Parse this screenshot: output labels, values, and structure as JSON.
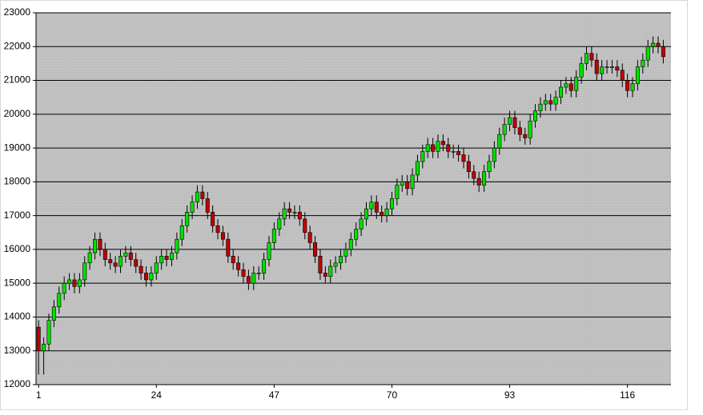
{
  "chart_data": {
    "type": "candlestick",
    "x": [
      1,
      2,
      3,
      4,
      5,
      6,
      7,
      8,
      9,
      10,
      11,
      12,
      13,
      14,
      15,
      16,
      17,
      18,
      19,
      20,
      21,
      22,
      23,
      24,
      25,
      26,
      27,
      28,
      29,
      30,
      31,
      32,
      33,
      34,
      35,
      36,
      37,
      38,
      39,
      40,
      41,
      42,
      43,
      44,
      45,
      46,
      47,
      48,
      49,
      50,
      51,
      52,
      53,
      54,
      55,
      56,
      57,
      58,
      59,
      60,
      61,
      62,
      63,
      64,
      65,
      66,
      67,
      68,
      69,
      70,
      71,
      72,
      73,
      74,
      75,
      76,
      77,
      78,
      79,
      80,
      81,
      82,
      83,
      84,
      85,
      86,
      87,
      88,
      89,
      90,
      91,
      92,
      93,
      94,
      95,
      96,
      97,
      98,
      99,
      100,
      101,
      102,
      103,
      104,
      105,
      106,
      107,
      108,
      109,
      110,
      111,
      112,
      113,
      114,
      115,
      116,
      117,
      118,
      119,
      120,
      121,
      122,
      123
    ],
    "open": [
      13700,
      13000,
      13200,
      13900,
      14300,
      14700,
      15000,
      15100,
      14900,
      15100,
      15600,
      15900,
      16300,
      16000,
      15700,
      15600,
      15500,
      15800,
      15900,
      15700,
      15500,
      15300,
      15100,
      15300,
      15600,
      15800,
      15700,
      15900,
      16300,
      16700,
      17100,
      17400,
      17700,
      17500,
      17100,
      16700,
      16500,
      16300,
      15800,
      15600,
      15400,
      15200,
      15000,
      15300,
      15300,
      15700,
      16200,
      16600,
      16900,
      17200,
      17100,
      17100,
      16900,
      16500,
      16200,
      15800,
      15300,
      15200,
      15500,
      15600,
      15800,
      16000,
      16300,
      16600,
      16900,
      17200,
      17400,
      17100,
      17000,
      17200,
      17500,
      17900,
      18000,
      17800,
      18200,
      18600,
      18900,
      19100,
      18900,
      19200,
      19100,
      18900,
      18900,
      18800,
      18600,
      18300,
      18100,
      17900,
      18300,
      18600,
      19000,
      19400,
      19700,
      19900,
      19600,
      19400,
      19300,
      19800,
      20100,
      20300,
      20400,
      20300,
      20500,
      20800,
      20900,
      20700,
      21100,
      21500,
      21800,
      21600,
      21200,
      21400,
      21400,
      21400,
      21300,
      21000,
      20700,
      20900,
      21400,
      21600,
      22000,
      22100,
      22000
    ],
    "high": [
      13900,
      13400,
      14100,
      14500,
      14900,
      15200,
      15300,
      15300,
      15300,
      15800,
      16100,
      16500,
      16500,
      16200,
      15900,
      15800,
      16000,
      16100,
      16100,
      15900,
      15700,
      15500,
      15500,
      15800,
      16000,
      16000,
      16100,
      16500,
      16900,
      17300,
      17600,
      17900,
      17900,
      17700,
      17300,
      16900,
      16700,
      16500,
      16000,
      15800,
      15600,
      15400,
      15500,
      15500,
      15900,
      16400,
      16800,
      17100,
      17400,
      17400,
      17300,
      17300,
      17100,
      16700,
      16400,
      16000,
      15500,
      15700,
      15800,
      16000,
      16200,
      16500,
      16800,
      17100,
      17400,
      17600,
      17600,
      17300,
      17400,
      17700,
      18100,
      18200,
      18200,
      18400,
      18800,
      19100,
      19300,
      19300,
      19400,
      19400,
      19300,
      19100,
      19100,
      19000,
      18800,
      18500,
      18300,
      18500,
      18800,
      19200,
      19600,
      19900,
      20100,
      20100,
      19800,
      19600,
      20000,
      20300,
      20500,
      20600,
      20600,
      20700,
      21000,
      21100,
      21100,
      21300,
      21700,
      22000,
      22000,
      21800,
      21600,
      21600,
      21600,
      21600,
      21500,
      21200,
      21100,
      21600,
      21800,
      22200,
      22300,
      22300,
      22200
    ],
    "low": [
      12300,
      12300,
      13000,
      13700,
      14100,
      14500,
      14800,
      14700,
      14700,
      14900,
      15400,
      15700,
      15800,
      15500,
      15400,
      15300,
      15300,
      15600,
      15500,
      15300,
      15100,
      14900,
      14900,
      15100,
      15400,
      15500,
      15500,
      15700,
      16100,
      16500,
      16900,
      17200,
      17300,
      16900,
      16500,
      16300,
      16100,
      15600,
      15400,
      15200,
      15000,
      14800,
      14800,
      15100,
      15100,
      15500,
      16000,
      16400,
      16700,
      16900,
      16900,
      16700,
      16300,
      16000,
      15600,
      15100,
      15000,
      15000,
      15300,
      15400,
      15600,
      15800,
      16100,
      16400,
      16700,
      17000,
      16900,
      16800,
      16800,
      17000,
      17300,
      17700,
      17600,
      17600,
      18000,
      18400,
      18700,
      18700,
      18700,
      18900,
      18700,
      18700,
      18600,
      18400,
      18100,
      17900,
      17700,
      17700,
      18100,
      18400,
      18800,
      19200,
      19500,
      19400,
      19200,
      19100,
      19100,
      19600,
      19900,
      20100,
      20100,
      20100,
      20300,
      20600,
      20500,
      20500,
      20900,
      21300,
      21400,
      21000,
      21000,
      21200,
      21200,
      21100,
      20800,
      20500,
      20500,
      20700,
      21200,
      21400,
      21800,
      21800,
      21500
    ],
    "close": [
      13000,
      13200,
      13900,
      14300,
      14700,
      15000,
      15100,
      14900,
      15100,
      15600,
      15900,
      16300,
      16000,
      15700,
      15600,
      15500,
      15800,
      15900,
      15700,
      15500,
      15300,
      15100,
      15300,
      15600,
      15800,
      15700,
      15900,
      16300,
      16700,
      17100,
      17400,
      17700,
      17500,
      17100,
      16700,
      16500,
      16300,
      15800,
      15600,
      15400,
      15200,
      15000,
      15300,
      15300,
      15700,
      16200,
      16600,
      16900,
      17200,
      17100,
      17100,
      16900,
      16500,
      16200,
      15800,
      15300,
      15200,
      15500,
      15600,
      15800,
      16000,
      16300,
      16600,
      16900,
      17200,
      17400,
      17100,
      17000,
      17200,
      17500,
      17900,
      18000,
      17800,
      18200,
      18600,
      18900,
      19100,
      18900,
      19200,
      19100,
      18900,
      18900,
      18800,
      18600,
      18300,
      18100,
      17900,
      18300,
      18600,
      19000,
      19400,
      19700,
      19900,
      19600,
      19400,
      19300,
      19800,
      20100,
      20300,
      20400,
      20300,
      20500,
      20800,
      20900,
      20700,
      21100,
      21500,
      21800,
      21600,
      21200,
      21400,
      21400,
      21400,
      21300,
      21000,
      20700,
      20900,
      21400,
      21600,
      22000,
      22100,
      22000,
      21700
    ],
    "up_color": "#00e000",
    "down_color": "#c00000",
    "background": "#c0c0c0",
    "xlim": [
      0.5,
      124.5
    ],
    "xticks": [
      1,
      24,
      47,
      70,
      93,
      116
    ],
    "ylim": [
      12000,
      23000
    ],
    "yticks": [
      12000,
      13000,
      14000,
      15000,
      16000,
      17000,
      18000,
      19000,
      20000,
      21000,
      22000,
      23000
    ],
    "grid": true
  }
}
